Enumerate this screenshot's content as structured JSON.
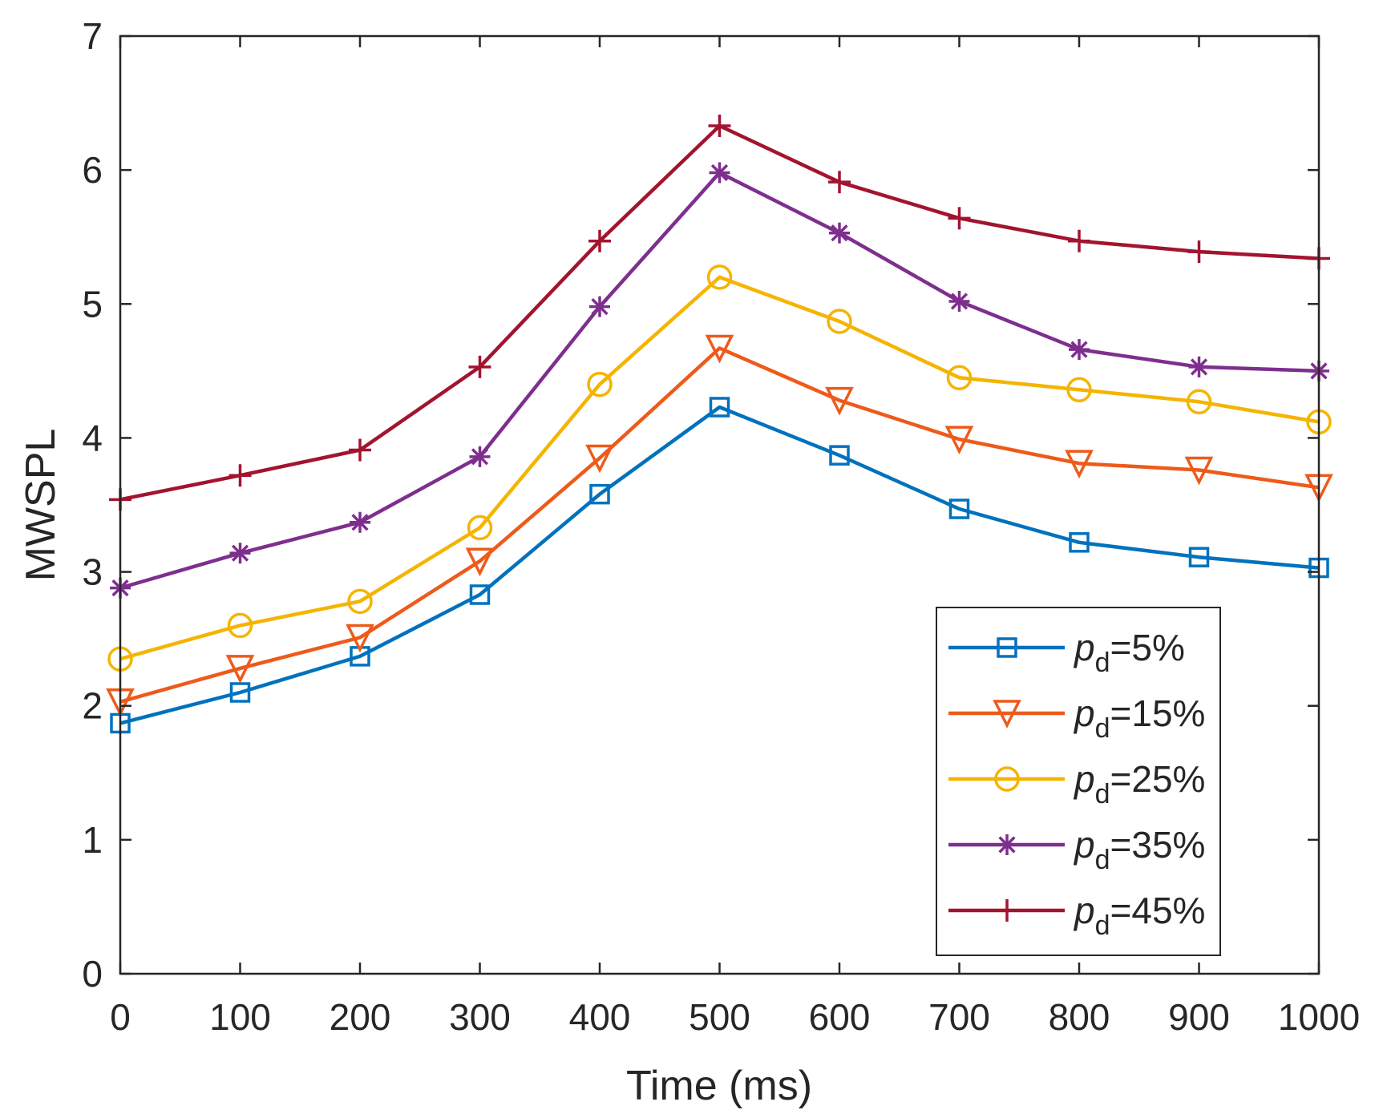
{
  "chart_data": {
    "type": "line",
    "title": "",
    "xlabel": "Time (ms)",
    "ylabel": "MWSPL",
    "xlim": [
      0,
      1000
    ],
    "ylim": [
      0,
      7
    ],
    "x_ticks": [
      0,
      100,
      200,
      300,
      400,
      500,
      600,
      700,
      800,
      900,
      1000
    ],
    "y_ticks": [
      0,
      1,
      2,
      3,
      4,
      5,
      6,
      7
    ],
    "grid": false,
    "legend_position": "bottom-right",
    "x": [
      0,
      100,
      200,
      300,
      400,
      500,
      600,
      700,
      800,
      900,
      1000
    ],
    "series": [
      {
        "name_symbol": "p",
        "name_subscript": "d",
        "name_value": "=5%",
        "color": "#0072BD",
        "marker": "square",
        "values": [
          1.87,
          2.1,
          2.37,
          2.83,
          3.58,
          4.23,
          3.87,
          3.47,
          3.22,
          3.11,
          3.03
        ]
      },
      {
        "name_symbol": "p",
        "name_subscript": "d",
        "name_value": "=15%",
        "color": "#EE5A1A",
        "marker": "triangle-down",
        "values": [
          2.03,
          2.28,
          2.51,
          3.08,
          3.85,
          4.67,
          4.28,
          3.99,
          3.81,
          3.76,
          3.63
        ]
      },
      {
        "name_symbol": "p",
        "name_subscript": "d",
        "name_value": "=25%",
        "color": "#F5B400",
        "marker": "circle",
        "values": [
          2.35,
          2.6,
          2.78,
          3.33,
          4.4,
          5.2,
          4.87,
          4.45,
          4.36,
          4.27,
          4.12
        ]
      },
      {
        "name_symbol": "p",
        "name_subscript": "d",
        "name_value": "=35%",
        "color": "#7E2F8E",
        "marker": "asterisk",
        "values": [
          2.88,
          3.14,
          3.37,
          3.86,
          4.98,
          5.98,
          5.53,
          5.02,
          4.66,
          4.53,
          4.5
        ]
      },
      {
        "name_symbol": "p",
        "name_subscript": "d",
        "name_value": "=45%",
        "color": "#A2142F",
        "marker": "plus",
        "values": [
          3.54,
          3.72,
          3.91,
          4.53,
          5.47,
          6.33,
          5.91,
          5.64,
          5.47,
          5.39,
          5.34
        ]
      }
    ]
  }
}
